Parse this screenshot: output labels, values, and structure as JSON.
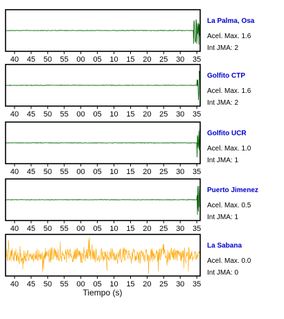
{
  "chart_data": {
    "type": "line",
    "xlabel": "Tiempo (s)",
    "x_tick_labels": [
      "40",
      "45",
      "50",
      "55",
      "00",
      "05",
      "10",
      "15",
      "20",
      "25",
      "30",
      "35"
    ],
    "colors": {
      "frame": "#000000",
      "station_name": "#0000cc",
      "green_trace": "#006400",
      "orange_trace": "#ffa500"
    },
    "panels": [
      {
        "station": "La Palma, Osa",
        "acel_label": "Acel. Max. 1.6",
        "int_label": "Int JMA: 2",
        "trace_color": "#006400",
        "event_x": "34",
        "activity": "burst"
      },
      {
        "station": "Golfito CTP",
        "acel_label": "Acel. Max. 1.6",
        "int_label": "Int JMA: 2",
        "trace_color": "#006400",
        "event_x": "35",
        "activity": "burst"
      },
      {
        "station": "Golfito UCR",
        "acel_label": "Acel. Max. 1.0",
        "int_label": "Int JMA: 1",
        "trace_color": "#006400",
        "event_x": "35",
        "activity": "burst"
      },
      {
        "station": "Puerto Jimenez",
        "acel_label": "Acel. Max. 0.5",
        "int_label": "Int JMA: 1",
        "trace_color": "#006400",
        "event_x": "35",
        "activity": "burst"
      },
      {
        "station": "La Sabana",
        "acel_label": "Acel. Max. 0.0",
        "int_label": "Int JMA: 0",
        "trace_color": "#ffa500",
        "event_x": "",
        "activity": "noise"
      }
    ]
  }
}
